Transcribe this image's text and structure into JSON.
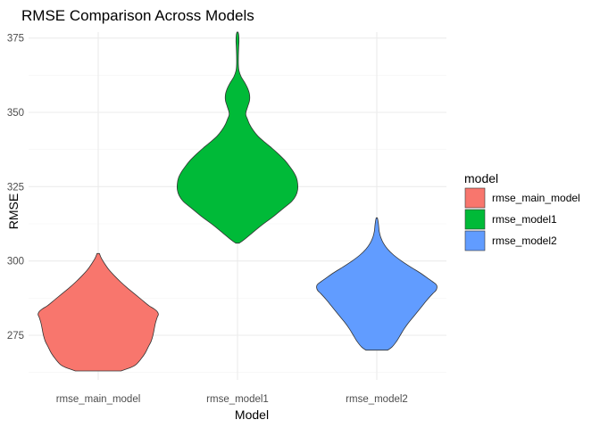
{
  "chart_data": {
    "type": "violin",
    "title": "RMSE Comparison Across Models",
    "xlabel": "Model",
    "ylabel": "RMSE",
    "ylim": [
      260,
      377
    ],
    "yticks": [
      275,
      300,
      325,
      350,
      375
    ],
    "grid": true,
    "legend": {
      "title": "model",
      "position": "right"
    },
    "categories": [
      "rmse_main_model",
      "rmse_model1",
      "rmse_model2"
    ],
    "series": [
      {
        "name": "rmse_main_model",
        "color": "#F8766D",
        "min": 263,
        "max": 302.5,
        "profile": [
          [
            263,
            0.38
          ],
          [
            264,
            0.52
          ],
          [
            265,
            0.62
          ],
          [
            267,
            0.71
          ],
          [
            269,
            0.78
          ],
          [
            271,
            0.83
          ],
          [
            273,
            0.88
          ],
          [
            275,
            0.91
          ],
          [
            277,
            0.93
          ],
          [
            279,
            0.95
          ],
          [
            281,
            0.98
          ],
          [
            282,
            1.0
          ],
          [
            283,
            0.98
          ],
          [
            284,
            0.92
          ],
          [
            285,
            0.84
          ],
          [
            287,
            0.72
          ],
          [
            289,
            0.6
          ],
          [
            291,
            0.48
          ],
          [
            293,
            0.37
          ],
          [
            295,
            0.27
          ],
          [
            297,
            0.18
          ],
          [
            299,
            0.11
          ],
          [
            301,
            0.05
          ],
          [
            302.5,
            0.02
          ]
        ]
      },
      {
        "name": "rmse_model1",
        "color": "#00BA38",
        "min": 306,
        "max": 377,
        "profile": [
          [
            306,
            0.03
          ],
          [
            307,
            0.1
          ],
          [
            309,
            0.22
          ],
          [
            312,
            0.4
          ],
          [
            315,
            0.6
          ],
          [
            318,
            0.78
          ],
          [
            320,
            0.9
          ],
          [
            322,
            0.97
          ],
          [
            324,
            1.0
          ],
          [
            326,
            1.0
          ],
          [
            328,
            0.98
          ],
          [
            330,
            0.93
          ],
          [
            332,
            0.86
          ],
          [
            334,
            0.78
          ],
          [
            336,
            0.68
          ],
          [
            338,
            0.57
          ],
          [
            340,
            0.45
          ],
          [
            342,
            0.34
          ],
          [
            344,
            0.26
          ],
          [
            346,
            0.2
          ],
          [
            348,
            0.16
          ],
          [
            349,
            0.14
          ],
          [
            350,
            0.14
          ],
          [
            352,
            0.17
          ],
          [
            354,
            0.2
          ],
          [
            356,
            0.2
          ],
          [
            358,
            0.17
          ],
          [
            360,
            0.12
          ],
          [
            362,
            0.06
          ],
          [
            364,
            0.025
          ],
          [
            366,
            0.015
          ],
          [
            369,
            0.015
          ],
          [
            372,
            0.02
          ],
          [
            374,
            0.025
          ],
          [
            376,
            0.02
          ],
          [
            377,
            0.01
          ]
        ]
      },
      {
        "name": "rmse_model2",
        "color": "#619CFF",
        "min": 270,
        "max": 314.5,
        "profile": [
          [
            270,
            0.18
          ],
          [
            271,
            0.25
          ],
          [
            273,
            0.33
          ],
          [
            275,
            0.39
          ],
          [
            277,
            0.45
          ],
          [
            279,
            0.52
          ],
          [
            281,
            0.6
          ],
          [
            283,
            0.68
          ],
          [
            285,
            0.76
          ],
          [
            287,
            0.84
          ],
          [
            289,
            0.93
          ],
          [
            290,
            0.98
          ],
          [
            291,
            1.0
          ],
          [
            292,
            0.99
          ],
          [
            293,
            0.93
          ],
          [
            294,
            0.86
          ],
          [
            296,
            0.72
          ],
          [
            298,
            0.56
          ],
          [
            300,
            0.41
          ],
          [
            302,
            0.28
          ],
          [
            304,
            0.18
          ],
          [
            306,
            0.11
          ],
          [
            308,
            0.065
          ],
          [
            310,
            0.04
          ],
          [
            312,
            0.03
          ],
          [
            313.5,
            0.02
          ],
          [
            314.5,
            0.01
          ]
        ]
      }
    ]
  }
}
